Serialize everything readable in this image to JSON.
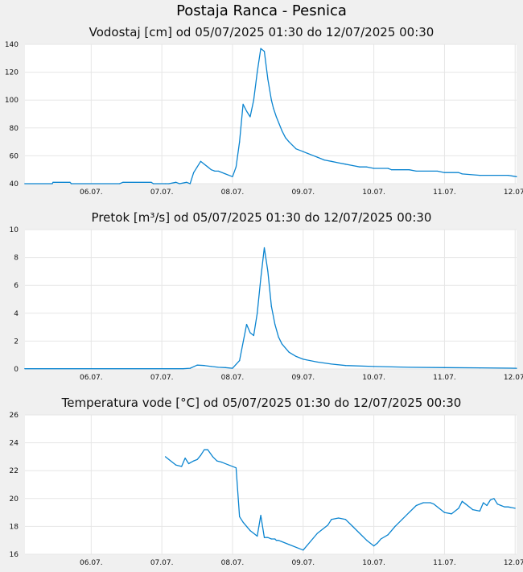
{
  "page": {
    "title": "Postaja Ranca - Pesnica",
    "line_color": "#0a84d0",
    "plot_bg": "#ffffff",
    "page_bg": "#f0f0f0"
  },
  "chart_data": [
    {
      "type": "line",
      "title": "Vodostaj [cm] od 05/07/2025 01:30 do 12/07/2025 00:30",
      "x_tick_labels": [
        "06.07.",
        "07.07.",
        "08.07.",
        "09.07.",
        "10.07.",
        "11.07.",
        "12.07."
      ],
      "x_tick_days": [
        6,
        7,
        8,
        9,
        10,
        11,
        12
      ],
      "xlim": [
        5.0625,
        12.02
      ],
      "y_ticks": [
        40,
        60,
        80,
        100,
        120,
        140
      ],
      "ylim": [
        40,
        140
      ],
      "grid": true,
      "series": [
        {
          "x": [
            5.06,
            5.45,
            5.46,
            5.7,
            5.72,
            6.4,
            6.45,
            6.85,
            6.88,
            7.05,
            7.1,
            7.2,
            7.25,
            7.35,
            7.4,
            7.45,
            7.5,
            7.55,
            7.6,
            7.65,
            7.7,
            7.75,
            7.8,
            7.9,
            8.0,
            8.05,
            8.1,
            8.15,
            8.2,
            8.25,
            8.3,
            8.35,
            8.4,
            8.45,
            8.5,
            8.55,
            8.58,
            8.62,
            8.66,
            8.7,
            8.75,
            8.8,
            8.9,
            9.0,
            9.1,
            9.2,
            9.3,
            9.4,
            9.5,
            9.6,
            9.7,
            9.8,
            9.9,
            10.0,
            10.2,
            10.25,
            10.5,
            10.6,
            10.9,
            11.0,
            11.2,
            11.25,
            11.5,
            11.9,
            12.02
          ],
          "values": [
            40,
            40,
            41,
            41,
            40,
            40,
            41,
            41,
            40,
            40,
            40,
            41,
            40,
            41,
            40,
            48,
            52,
            56,
            54,
            52,
            50,
            49,
            49,
            47,
            45,
            52,
            70,
            97,
            92,
            88,
            100,
            120,
            137,
            135,
            115,
            100,
            94,
            88,
            83,
            78,
            73,
            70,
            65,
            63,
            61,
            59,
            57,
            56,
            55,
            54,
            53,
            52,
            52,
            51,
            51,
            50,
            50,
            49,
            49,
            48,
            48,
            47,
            46,
            46,
            45
          ]
        }
      ]
    },
    {
      "type": "line",
      "title": "Pretok [m³/s] od 05/07/2025 01:30 do 12/07/2025 00:30",
      "x_tick_labels": [
        "06.07.",
        "07.07.",
        "08.07.",
        "09.07.",
        "10.07.",
        "11.07.",
        "12.07."
      ],
      "x_tick_days": [
        6,
        7,
        8,
        9,
        10,
        11,
        12
      ],
      "xlim": [
        5.0625,
        12.02
      ],
      "y_ticks": [
        0,
        2,
        4,
        6,
        8,
        10
      ],
      "ylim": [
        0,
        10
      ],
      "grid": true,
      "series": [
        {
          "x": [
            5.06,
            7.3,
            7.4,
            7.5,
            7.6,
            7.7,
            7.8,
            7.9,
            8.0,
            8.1,
            8.2,
            8.25,
            8.3,
            8.35,
            8.4,
            8.45,
            8.5,
            8.55,
            8.6,
            8.65,
            8.7,
            8.8,
            8.9,
            9.0,
            9.2,
            9.4,
            9.6,
            10.0,
            10.5,
            11.0,
            11.5,
            12.02
          ],
          "values": [
            0.02,
            0.02,
            0.05,
            0.28,
            0.25,
            0.18,
            0.12,
            0.1,
            0.05,
            0.6,
            3.2,
            2.6,
            2.4,
            4.0,
            6.5,
            8.7,
            7.0,
            4.5,
            3.2,
            2.3,
            1.8,
            1.2,
            0.9,
            0.7,
            0.5,
            0.35,
            0.25,
            0.18,
            0.12,
            0.1,
            0.08,
            0.05
          ]
        }
      ]
    },
    {
      "type": "line",
      "title": "Temperatura vode [°C] od 05/07/2025 01:30 do 12/07/2025 00:30",
      "x_tick_labels": [
        "06.07.",
        "07.07.",
        "08.07.",
        "09.07.",
        "10.07.",
        "11.07.",
        "12.07."
      ],
      "x_tick_days": [
        6,
        7,
        8,
        9,
        10,
        11,
        12
      ],
      "xlim": [
        5.0625,
        12.02
      ],
      "y_ticks": [
        16,
        18,
        20,
        22,
        24,
        26
      ],
      "ylim": [
        16,
        26
      ],
      "grid": true,
      "series": [
        {
          "x": [
            7.05,
            7.1,
            7.2,
            7.28,
            7.33,
            7.38,
            7.45,
            7.5,
            7.55,
            7.6,
            7.65,
            7.72,
            7.78,
            7.85,
            7.95,
            8.05,
            8.1,
            8.15,
            8.2,
            8.25,
            8.3,
            8.35,
            8.4,
            8.45,
            8.5,
            8.55,
            8.6,
            8.62,
            8.65,
            8.7,
            8.8,
            9.0,
            9.2,
            9.35,
            9.4,
            9.5,
            9.6,
            9.7,
            9.8,
            9.9,
            10.0,
            10.05,
            10.1,
            10.2,
            10.3,
            10.4,
            10.5,
            10.6,
            10.7,
            10.8,
            10.85,
            10.9,
            11.0,
            11.1,
            11.2,
            11.25,
            11.3,
            11.4,
            11.5,
            11.55,
            11.6,
            11.65,
            11.7,
            11.75,
            11.8,
            11.85,
            11.9,
            12.0
          ],
          "values": [
            23.0,
            22.8,
            22.4,
            22.3,
            22.9,
            22.5,
            22.7,
            22.8,
            23.1,
            23.5,
            23.5,
            23.0,
            22.7,
            22.6,
            22.4,
            22.2,
            18.7,
            18.3,
            18.0,
            17.7,
            17.5,
            17.3,
            18.8,
            17.2,
            17.2,
            17.1,
            17.1,
            17.0,
            17.0,
            16.9,
            16.7,
            16.3,
            17.5,
            18.1,
            18.5,
            18.6,
            18.5,
            18.0,
            17.5,
            17.0,
            16.6,
            16.8,
            17.1,
            17.4,
            18.0,
            18.5,
            19.0,
            19.5,
            19.7,
            19.7,
            19.6,
            19.4,
            19.0,
            18.9,
            19.3,
            19.8,
            19.6,
            19.2,
            19.1,
            19.7,
            19.5,
            19.9,
            20.0,
            19.6,
            19.5,
            19.4,
            19.4,
            19.3
          ]
        }
      ]
    }
  ]
}
